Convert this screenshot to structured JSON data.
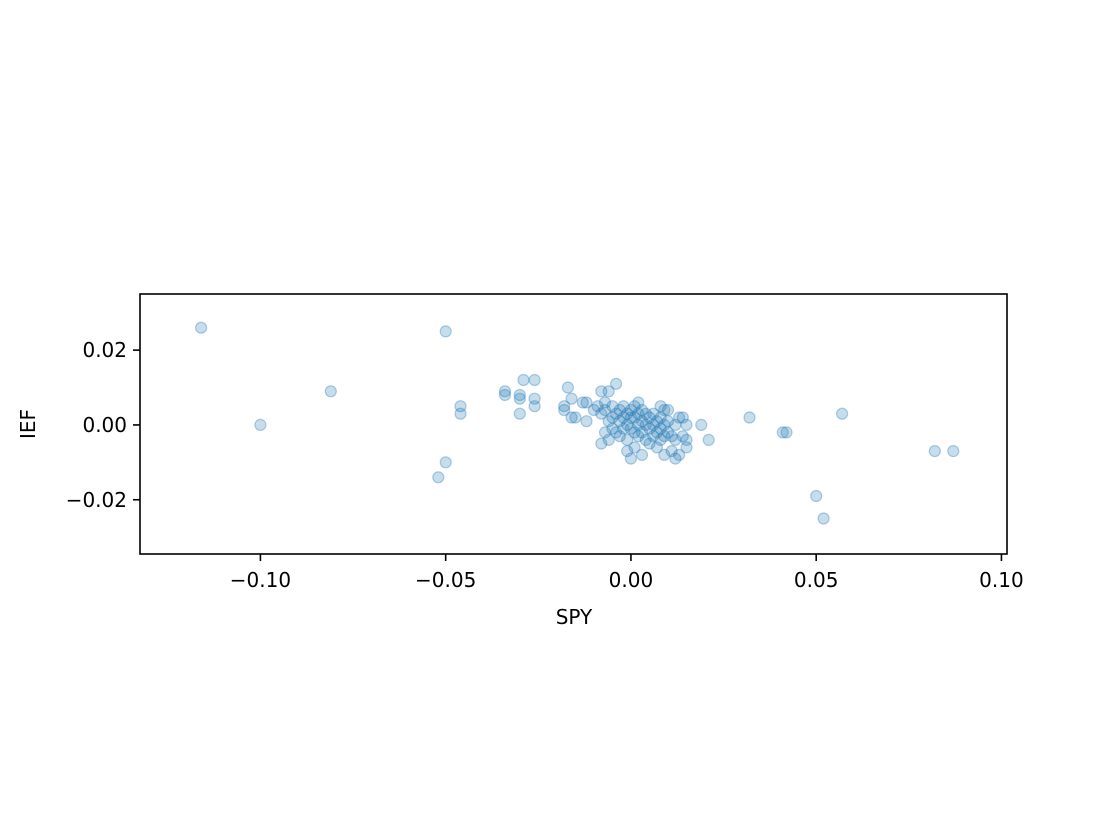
{
  "chart_data": {
    "type": "scatter",
    "title": "",
    "xlabel": "SPY",
    "ylabel": "IEF",
    "xlim": [
      -0.1325,
      0.1015
    ],
    "ylim": [
      -0.0345,
      0.035
    ],
    "xticks": [
      -0.1,
      -0.05,
      0.0,
      0.05,
      0.1
    ],
    "xtick_labels": [
      "−0.10",
      "−0.05",
      "0.00",
      "0.05",
      "0.10"
    ],
    "yticks": [
      -0.02,
      0.0,
      0.02
    ],
    "ytick_labels": [
      "−0.02",
      "0.00",
      "0.02"
    ],
    "grid": false,
    "marker_color": "#1f77b4",
    "marker_alpha": 0.25,
    "points": [
      [
        -0.116,
        0.026
      ],
      [
        -0.05,
        0.025
      ],
      [
        -0.081,
        0.009
      ],
      [
        -0.1,
        0.0
      ],
      [
        -0.046,
        0.005
      ],
      [
        -0.046,
        0.003
      ],
      [
        -0.05,
        -0.01
      ],
      [
        -0.052,
        -0.014
      ],
      [
        -0.034,
        0.009
      ],
      [
        -0.034,
        0.008
      ],
      [
        -0.03,
        0.008
      ],
      [
        -0.03,
        0.007
      ],
      [
        -0.029,
        0.012
      ],
      [
        -0.026,
        0.012
      ],
      [
        -0.026,
        0.007
      ],
      [
        -0.026,
        0.005
      ],
      [
        -0.03,
        0.003
      ],
      [
        -0.017,
        0.01
      ],
      [
        -0.016,
        0.007
      ],
      [
        -0.018,
        0.005
      ],
      [
        -0.018,
        0.004
      ],
      [
        -0.016,
        0.002
      ],
      [
        -0.015,
        0.002
      ],
      [
        -0.013,
        0.006
      ],
      [
        -0.012,
        0.006
      ],
      [
        -0.012,
        0.001
      ],
      [
        -0.01,
        0.004
      ],
      [
        -0.009,
        0.005
      ],
      [
        -0.008,
        0.009
      ],
      [
        -0.008,
        0.003
      ],
      [
        -0.008,
        -0.005
      ],
      [
        -0.007,
        0.006
      ],
      [
        -0.007,
        0.004
      ],
      [
        -0.007,
        -0.002
      ],
      [
        -0.006,
        0.009
      ],
      [
        -0.006,
        0.001
      ],
      [
        -0.006,
        -0.004
      ],
      [
        -0.005,
        0.005
      ],
      [
        -0.005,
        0.002
      ],
      [
        -0.005,
        -0.001
      ],
      [
        -0.004,
        0.011
      ],
      [
        -0.004,
        0.003
      ],
      [
        -0.004,
        -0.002
      ],
      [
        -0.003,
        0.004
      ],
      [
        -0.003,
        0.001
      ],
      [
        -0.003,
        -0.003
      ],
      [
        -0.002,
        0.005
      ],
      [
        -0.002,
        0.002
      ],
      [
        -0.002,
        -0.001
      ],
      [
        -0.001,
        0.003
      ],
      [
        -0.001,
        0.0
      ],
      [
        -0.001,
        -0.004
      ],
      [
        -0.001,
        -0.007
      ],
      [
        0.0,
        0.004
      ],
      [
        0.0,
        0.002
      ],
      [
        0.0,
        -0.001
      ],
      [
        0.0,
        -0.009
      ],
      [
        0.001,
        0.005
      ],
      [
        0.001,
        0.002
      ],
      [
        0.001,
        -0.002
      ],
      [
        0.001,
        -0.006
      ],
      [
        0.002,
        0.006
      ],
      [
        0.002,
        0.003
      ],
      [
        0.002,
        0.0
      ],
      [
        0.002,
        -0.003
      ],
      [
        0.003,
        0.004
      ],
      [
        0.003,
        0.001
      ],
      [
        0.003,
        -0.002
      ],
      [
        0.003,
        -0.008
      ],
      [
        0.004,
        0.003
      ],
      [
        0.004,
        0.0
      ],
      [
        0.004,
        -0.004
      ],
      [
        0.005,
        0.002
      ],
      [
        0.005,
        -0.001
      ],
      [
        0.005,
        -0.005
      ],
      [
        0.006,
        0.003
      ],
      [
        0.006,
        0.0
      ],
      [
        0.006,
        -0.003
      ],
      [
        0.007,
        0.001
      ],
      [
        0.007,
        -0.002
      ],
      [
        0.007,
        -0.006
      ],
      [
        0.008,
        0.005
      ],
      [
        0.008,
        0.002
      ],
      [
        0.008,
        -0.001
      ],
      [
        0.008,
        -0.004
      ],
      [
        0.009,
        0.004
      ],
      [
        0.009,
        0.0
      ],
      [
        0.009,
        -0.003
      ],
      [
        0.009,
        -0.008
      ],
      [
        0.01,
        0.004
      ],
      [
        0.01,
        0.001
      ],
      [
        0.01,
        -0.002
      ],
      [
        0.011,
        -0.003
      ],
      [
        0.011,
        -0.007
      ],
      [
        0.012,
        0.0
      ],
      [
        0.012,
        -0.004
      ],
      [
        0.012,
        -0.009
      ],
      [
        0.013,
        0.002
      ],
      [
        0.013,
        -0.008
      ],
      [
        0.014,
        0.002
      ],
      [
        0.014,
        -0.003
      ],
      [
        0.015,
        0.0
      ],
      [
        0.015,
        -0.004
      ],
      [
        0.015,
        -0.006
      ],
      [
        0.019,
        0.0
      ],
      [
        0.021,
        -0.004
      ],
      [
        0.032,
        0.002
      ],
      [
        0.041,
        -0.002
      ],
      [
        0.042,
        -0.002
      ],
      [
        0.057,
        0.003
      ],
      [
        0.05,
        -0.019
      ],
      [
        0.052,
        -0.025
      ],
      [
        0.082,
        -0.007
      ],
      [
        0.087,
        -0.007
      ]
    ]
  }
}
